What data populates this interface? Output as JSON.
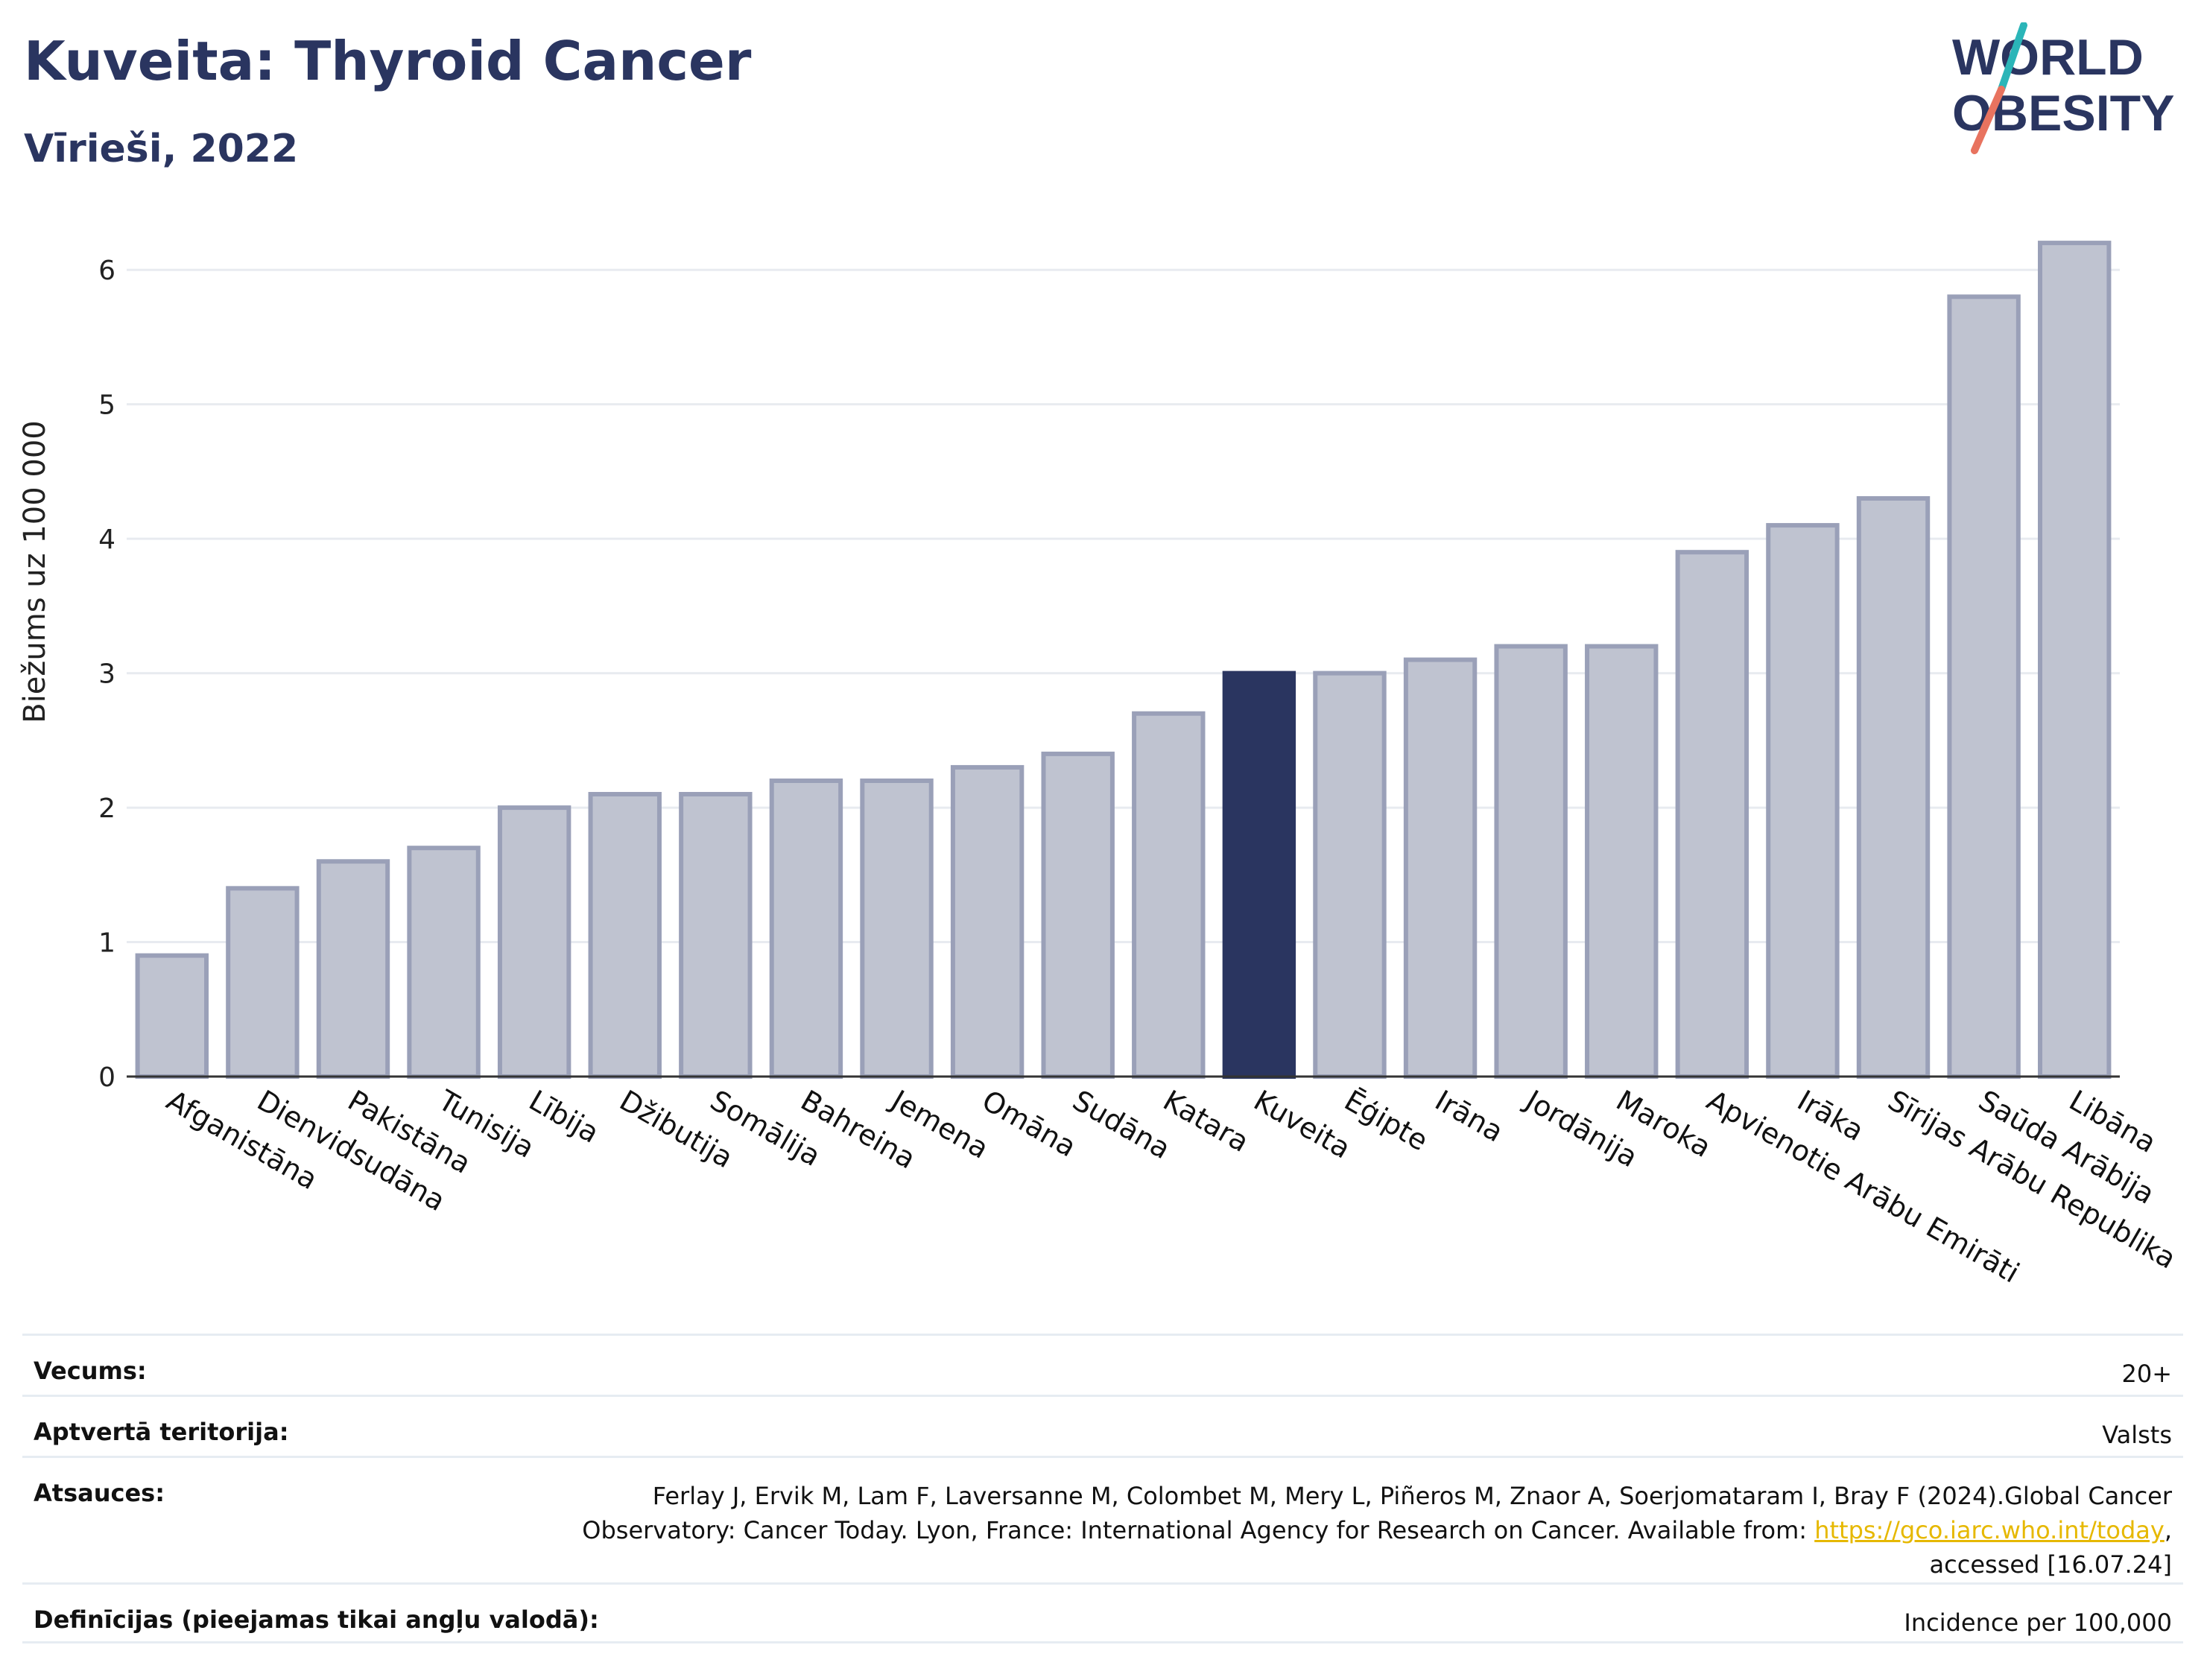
{
  "header": {
    "title": "Kuveita: Thyroid Cancer",
    "subtitle": "Vīrieši, 2022"
  },
  "logo": {
    "line1": "WORLD",
    "line2": "OBESITY"
  },
  "colors": {
    "highlight": "#2a3560",
    "bar_fill": "#bfc3d0",
    "bar_stroke": "#9aa0b8",
    "accent_teal": "#2bb5b8",
    "accent_coral": "#e8735f"
  },
  "chart_data": {
    "type": "bar",
    "ylabel": "Biežums uz 100 000",
    "ylim": [
      0,
      6.4
    ],
    "yticks": [
      "0",
      "1",
      "2",
      "3",
      "4",
      "5",
      "6"
    ],
    "grid": true,
    "highlight": "Kuveita",
    "categories": [
      "Afganistāna",
      "Dienvidsudāna",
      "Pakistāna",
      "Tunisija",
      "Lībija",
      "Džibutija",
      "Somālija",
      "Bahreina",
      "Jemena",
      "Omāna",
      "Sudāna",
      "Katara",
      "Kuveita",
      "Ēģipte",
      "Irāna",
      "Jordānija",
      "Maroka",
      "Apvienotie Arābu Emirāti",
      "Irāka",
      "Sīrijas Arābu Republika",
      "Saūda Arābija",
      "Libāna"
    ],
    "values": [
      0.9,
      1.4,
      1.6,
      1.7,
      2.0,
      2.1,
      2.1,
      2.2,
      2.2,
      2.3,
      2.4,
      2.7,
      3.0,
      3.0,
      3.1,
      3.2,
      3.2,
      3.9,
      4.1,
      4.3,
      5.8,
      6.2
    ]
  },
  "info": {
    "age_label": "Vecums:",
    "age_value": "20+",
    "coverage_label": "Aptvertā teritorija:",
    "coverage_value": "Valsts",
    "refs_label": "Atsauces:",
    "refs_line1": "Ferlay J, Ervik M, Lam F, Laversanne M, Colombet M, Mery L, Piñeros M, Znaor A, Soerjomataram I, Bray F (2024).Global Cancer",
    "refs_line2_prefix": "Observatory: Cancer Today. Lyon, France: International Agency for Research on Cancer. Available from: ",
    "refs_link": "https://gco.iarc.who.int/today",
    "refs_line2_suffix": ",",
    "refs_line3": "accessed [16.07.24]",
    "defs_label": "Definīcijas (pieejamas tikai angļu valodā):",
    "defs_value": "Incidence per 100,000"
  }
}
